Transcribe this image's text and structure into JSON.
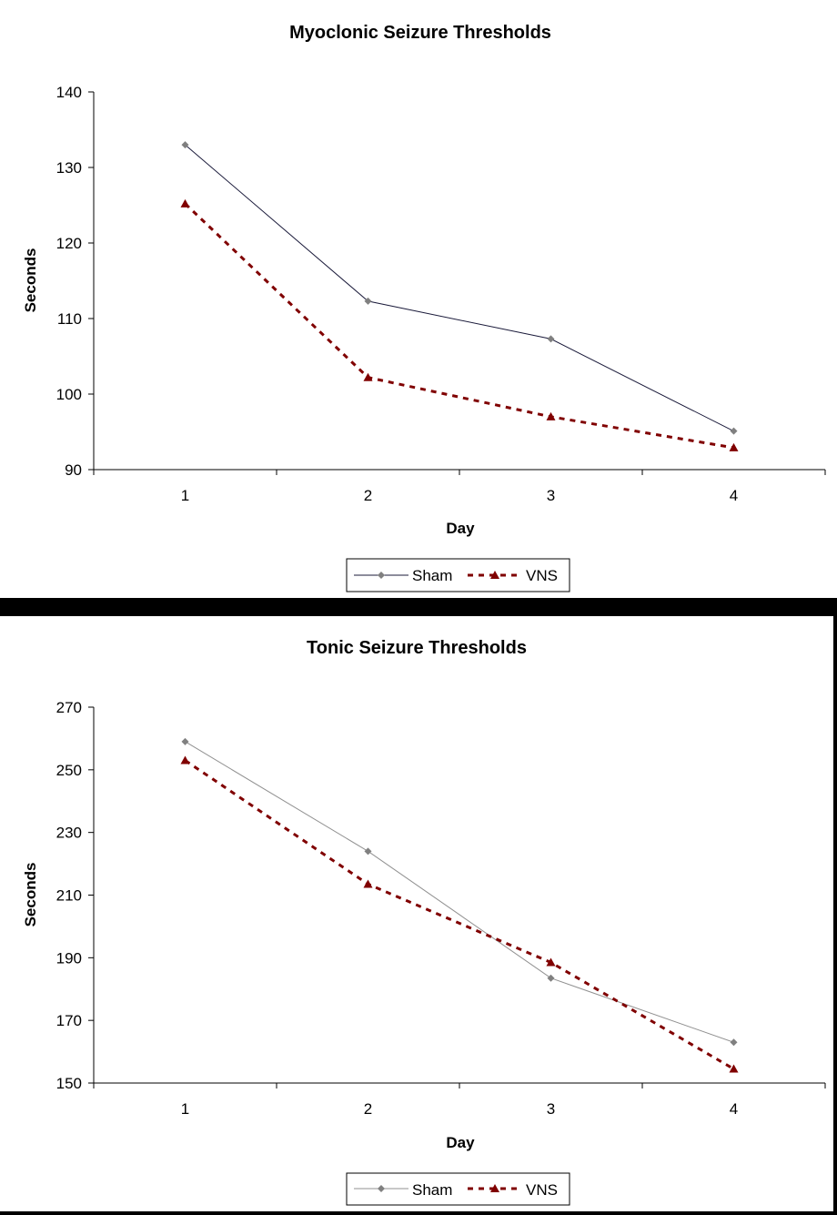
{
  "chart_data": [
    {
      "type": "line",
      "title": "Myoclonic Seizure Thresholds",
      "xlabel": "Day",
      "ylabel": "Seconds",
      "categories": [
        "1",
        "2",
        "3",
        "4"
      ],
      "ylim": [
        90,
        140
      ],
      "yticks": [
        "140",
        "130",
        "120",
        "110",
        "100",
        "90"
      ],
      "legend_position": "bottom-center",
      "grid": false,
      "series": [
        {
          "name": "Sham",
          "values": [
            133,
            112.3,
            107.3,
            95.1
          ],
          "color": "#808080",
          "line_color": "#1a1a3a",
          "dashed": false,
          "marker": "diamond"
        },
        {
          "name": "VNS",
          "values": [
            125.2,
            102.2,
            97,
            92.9
          ],
          "color": "#800000",
          "line_color": "#800000",
          "dashed": true,
          "marker": "triangle"
        }
      ]
    },
    {
      "type": "line",
      "title": "Tonic Seizure Thresholds",
      "xlabel": "Day",
      "ylabel": "Seconds",
      "categories": [
        "1",
        "2",
        "3",
        "4"
      ],
      "ylim": [
        150,
        270
      ],
      "yticks": [
        "270",
        "250",
        "230",
        "210",
        "190",
        "170",
        "150"
      ],
      "legend_position": "bottom-center",
      "grid": false,
      "series": [
        {
          "name": "Sham",
          "values": [
            259,
            224,
            183.5,
            163
          ],
          "color": "#808080",
          "line_color": "#909090",
          "dashed": false,
          "marker": "diamond"
        },
        {
          "name": "VNS",
          "values": [
            253,
            213.5,
            188.5,
            154.5
          ],
          "color": "#800000",
          "line_color": "#800000",
          "dashed": true,
          "marker": "triangle"
        }
      ]
    }
  ]
}
